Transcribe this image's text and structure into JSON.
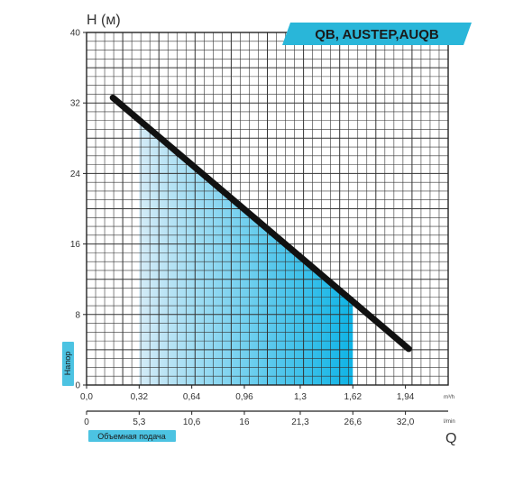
{
  "chart_data": {
    "type": "line",
    "title": "QB, AUSTEP,AUQB",
    "y_axis": {
      "title": "H (м)",
      "side_label": "Напор",
      "ticks": [
        "0",
        "8",
        "16",
        "24",
        "32",
        "40"
      ],
      "ylim": [
        0,
        40
      ]
    },
    "x_axis_primary": {
      "unit": "m³/h",
      "ticks": [
        "0,0",
        "0,32",
        "0,64",
        "0,96",
        "1,3",
        "1,62",
        "1,94"
      ],
      "tick_values": [
        0,
        0.32,
        0.64,
        0.96,
        1.3,
        1.62,
        1.94
      ],
      "xlim": [
        0,
        2.2
      ]
    },
    "x_axis_secondary": {
      "unit": "l/min",
      "ticks": [
        "0",
        "5,3",
        "10,6",
        "16",
        "21,3",
        "26,6",
        "32,0"
      ],
      "tick_values": [
        0,
        5.3,
        10.6,
        16,
        21.3,
        26.6,
        32.0
      ],
      "title": "Q",
      "side_label": "Объемная подача"
    },
    "series": [
      {
        "x": [
          0.16,
          1.96
        ],
        "y": [
          32.6,
          4.1
        ]
      }
    ],
    "working_range": {
      "x": [
        0.32,
        1.62
      ]
    },
    "colors": {
      "curve": "#111111",
      "fill_light": "#d4ebf7",
      "fill_dark": "#0fb4e6",
      "badge": "#29b6d9",
      "label_bg": "#4cc3e2",
      "grid": "#333333"
    }
  }
}
